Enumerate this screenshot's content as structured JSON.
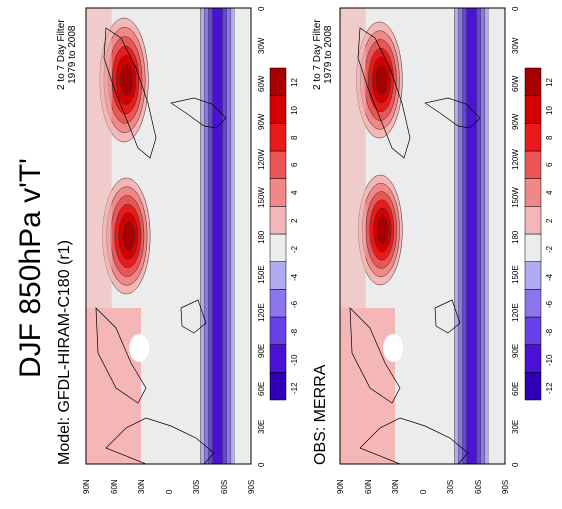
{
  "title": "DJF 850hPa v'T'",
  "colors": {
    "bin_colors": [
      "#2e00b8",
      "#4a12d6",
      "#6a40e8",
      "#8d75ee",
      "#b1abf2",
      "#ececec",
      "#f4b6b6",
      "#f08888",
      "#ec5555",
      "#e81a1a",
      "#d20000",
      "#a60000"
    ],
    "coast": "#000000",
    "contour": "#333333"
  },
  "colorbar": {
    "labels": [
      "-12",
      "-10",
      "-8",
      "-6",
      "-4",
      "-2",
      "2",
      "4",
      "6",
      "8",
      "10",
      "12"
    ]
  },
  "lat_ticks": [
    "90N",
    "60N",
    "30N",
    "0",
    "30S",
    "60S",
    "90S"
  ],
  "lon_ticks": [
    "0",
    "30W",
    "60W",
    "90W",
    "120W",
    "150W",
    "180",
    "150E",
    "120E",
    "90E",
    "60E",
    "30E",
    "0"
  ],
  "panels": [
    {
      "id": "model",
      "label": "Model: GFDL-HIRAM-C180 (r1)",
      "filter_line1": "2 to 7 Day Filter",
      "filter_line2": "1979 to 2008"
    },
    {
      "id": "obs",
      "label": "OBS: MERRA",
      "filter_line1": "2 to 7 Day Filter",
      "filter_line2": "1979 to 2008"
    }
  ]
}
